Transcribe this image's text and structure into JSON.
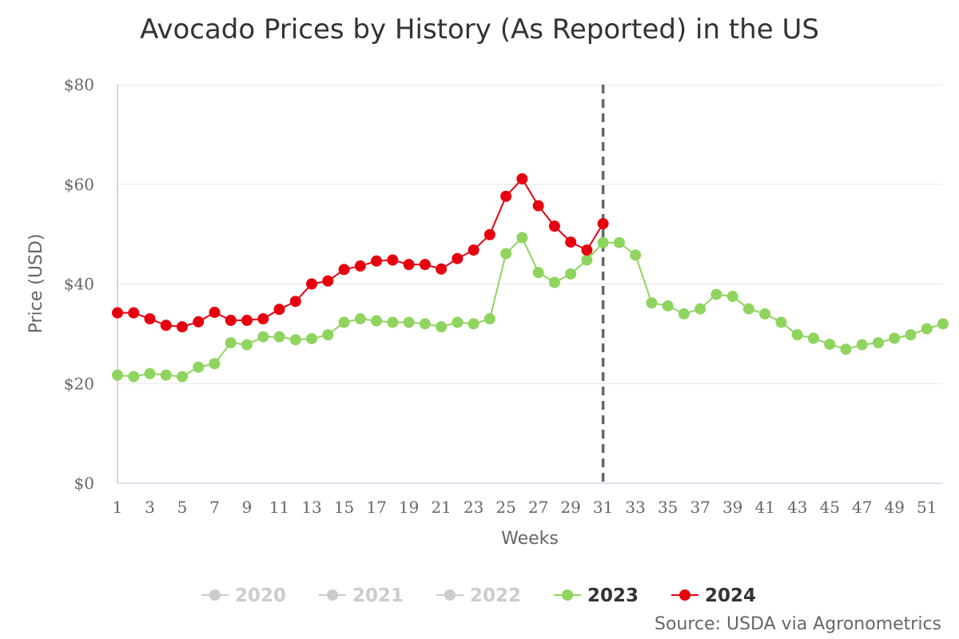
{
  "chart_data": {
    "type": "line",
    "title": "Avocado Prices by History (As Reported) in the US",
    "xlabel": "Weeks",
    "ylabel": "Price (USD)",
    "xlim": [
      1,
      52
    ],
    "ylim": [
      0,
      80
    ],
    "yticks": [
      0,
      20,
      40,
      60,
      80
    ],
    "ytick_labels": [
      "$0",
      "$20",
      "$40",
      "$60",
      "$80"
    ],
    "xticks": [
      1,
      3,
      5,
      7,
      9,
      11,
      13,
      15,
      17,
      19,
      21,
      23,
      25,
      27,
      29,
      31,
      33,
      35,
      37,
      39,
      41,
      43,
      45,
      47,
      49,
      51
    ],
    "xtick_labels": [
      "1",
      "3",
      "5",
      "7",
      "9",
      "11",
      "13",
      "15",
      "17",
      "19",
      "21",
      "23",
      "25",
      "27",
      "29",
      "31",
      "33",
      "35",
      "37",
      "39",
      "41",
      "43",
      "45",
      "47",
      "49",
      "51"
    ],
    "reference_line_week": 31,
    "grid": true,
    "legend_position": "bottom",
    "source": "Source: USDA via Agronometrics",
    "series": [
      {
        "name": "2020",
        "visible": false,
        "color": "#cccccc",
        "values": []
      },
      {
        "name": "2021",
        "visible": false,
        "color": "#cccccc",
        "values": []
      },
      {
        "name": "2022",
        "visible": false,
        "color": "#cccccc",
        "values": []
      },
      {
        "name": "2023",
        "visible": true,
        "color": "#8fd45f",
        "weeks": [
          1,
          2,
          3,
          4,
          5,
          6,
          7,
          8,
          9,
          10,
          11,
          12,
          13,
          14,
          15,
          16,
          17,
          18,
          19,
          20,
          21,
          22,
          23,
          24,
          25,
          26,
          27,
          28,
          29,
          30,
          31,
          32,
          33,
          34,
          35,
          36,
          37,
          38,
          39,
          40,
          41,
          42,
          43,
          44,
          45,
          46,
          47,
          48,
          49,
          50,
          51,
          52
        ],
        "values": [
          21.7,
          21.4,
          22.0,
          21.7,
          21.4,
          23.3,
          24.0,
          28.2,
          27.8,
          29.4,
          29.4,
          28.8,
          29.0,
          29.8,
          32.3,
          33.0,
          32.6,
          32.3,
          32.3,
          32.0,
          31.4,
          32.3,
          32.0,
          33.0,
          46.1,
          49.3,
          42.3,
          40.3,
          42.0,
          44.8,
          48.3,
          48.3,
          45.8,
          36.2,
          35.6,
          34.0,
          35.0,
          37.9,
          37.5,
          35.0,
          34.0,
          32.3,
          29.8,
          29.1,
          27.9,
          26.9,
          27.8,
          28.2,
          29.1,
          29.8,
          31.0,
          32.0
        ]
      },
      {
        "name": "2024",
        "visible": true,
        "color": "#e6000f",
        "weeks": [
          1,
          2,
          3,
          4,
          5,
          6,
          7,
          8,
          9,
          10,
          11,
          12,
          13,
          14,
          15,
          16,
          17,
          18,
          19,
          20,
          21,
          22,
          23,
          24,
          25,
          26,
          27,
          28,
          29,
          30,
          31
        ],
        "values": [
          34.2,
          34.2,
          33.0,
          31.7,
          31.4,
          32.4,
          34.3,
          32.7,
          32.7,
          33.0,
          34.9,
          36.5,
          40.0,
          40.6,
          42.9,
          43.6,
          44.6,
          44.8,
          43.9,
          43.9,
          43.0,
          45.1,
          46.8,
          49.9,
          57.6,
          61.1,
          55.7,
          51.6,
          48.4,
          46.8,
          52.1
        ]
      }
    ]
  }
}
